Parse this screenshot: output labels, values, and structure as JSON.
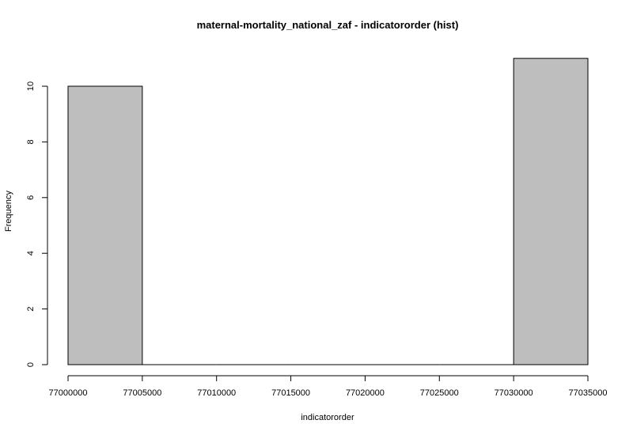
{
  "chart_data": {
    "type": "bar",
    "title": "maternal-mortality_national_zaf - indicatororder (hist)",
    "xlabel": "indicatororder",
    "ylabel": "Frequency",
    "bins": [
      {
        "start": 77000000,
        "end": 77005000,
        "count": 10
      },
      {
        "start": 77005000,
        "end": 77010000,
        "count": 0
      },
      {
        "start": 77010000,
        "end": 77015000,
        "count": 0
      },
      {
        "start": 77015000,
        "end": 77020000,
        "count": 0
      },
      {
        "start": 77020000,
        "end": 77025000,
        "count": 0
      },
      {
        "start": 77025000,
        "end": 77030000,
        "count": 0
      },
      {
        "start": 77030000,
        "end": 77035000,
        "count": 11
      }
    ],
    "xlim": [
      77000000,
      77035000
    ],
    "ylim": [
      0,
      11
    ],
    "x_ticks": [
      "77000000",
      "77005000",
      "77010000",
      "77015000",
      "77020000",
      "77025000",
      "77030000",
      "77035000"
    ],
    "y_ticks": [
      "0",
      "2",
      "4",
      "6",
      "8",
      "10"
    ],
    "bar_color": "#bebebe",
    "bar_border_color": "#000000",
    "grid": false
  }
}
